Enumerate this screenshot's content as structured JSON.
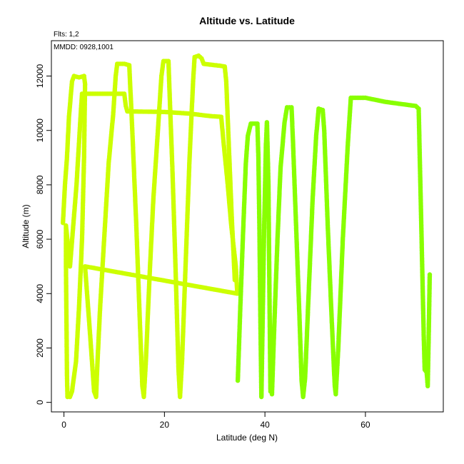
{
  "chart_data": {
    "type": "scatter",
    "title": "Altitude vs. Latitude",
    "xlabel": "Latitude (deg N)",
    "ylabel": "Altitude (m)",
    "xlim": [
      -2.5,
      75.5
    ],
    "ylim": [
      -350,
      13300
    ],
    "x_ticks": [
      0,
      20,
      40,
      60
    ],
    "y_ticks": [
      0,
      2000,
      4000,
      6000,
      8000,
      10000,
      12000
    ],
    "annotations": [
      "Flts: 1,2",
      "MMDD: 0928,1001"
    ],
    "grid": false,
    "series": [
      {
        "color": "#ccff00",
        "points": [
          [
            -0.2,
            6600
          ],
          [
            0.2,
            8000
          ],
          [
            0.6,
            9000
          ],
          [
            1.0,
            10500
          ],
          [
            1.6,
            11800
          ],
          [
            2.0,
            12000
          ],
          [
            3.0,
            11950
          ],
          [
            4.0,
            12000
          ],
          [
            4.2,
            11700
          ],
          [
            4.0,
            9000
          ],
          [
            3.6,
            6000
          ],
          [
            3.0,
            3500
          ],
          [
            2.4,
            1500
          ],
          [
            1.6,
            400
          ],
          [
            1.2,
            200
          ],
          [
            0.7,
            200
          ],
          [
            0.6,
            1000
          ],
          [
            0.5,
            3000
          ],
          [
            0.4,
            5000
          ],
          [
            0.4,
            6500
          ],
          [
            1.2,
            5000
          ],
          [
            2.5,
            8000
          ],
          [
            3.4,
            10800
          ],
          [
            3.6,
            11350
          ],
          [
            7,
            11350
          ],
          [
            9,
            11350
          ],
          [
            12,
            11350
          ],
          [
            12.3,
            10900
          ],
          [
            12.6,
            10700
          ],
          [
            20,
            10680
          ],
          [
            25,
            10620
          ],
          [
            29,
            10530
          ],
          [
            31.3,
            10500
          ],
          [
            31.8,
            9500
          ],
          [
            32.6,
            8000
          ],
          [
            33.3,
            6500
          ],
          [
            33.6,
            6000
          ],
          [
            34.2,
            5000
          ],
          [
            34.5,
            4000
          ],
          [
            4.2,
            5000
          ],
          [
            5.2,
            2500
          ],
          [
            6,
            400
          ],
          [
            6.4,
            200
          ],
          [
            6.6,
            1200
          ],
          [
            7.2,
            3500
          ],
          [
            8,
            6000
          ],
          [
            8.9,
            8800
          ],
          [
            9.8,
            10600
          ],
          [
            10.3,
            12000
          ],
          [
            10.6,
            12450
          ],
          [
            12,
            12450
          ],
          [
            13,
            12400
          ],
          [
            13.6,
            10000
          ],
          [
            14.4,
            6500
          ],
          [
            15.1,
            3000
          ],
          [
            15.6,
            600
          ],
          [
            15.9,
            200
          ],
          [
            16.3,
            1500
          ],
          [
            17,
            4500
          ],
          [
            17.8,
            7500
          ],
          [
            18.7,
            10000
          ],
          [
            19.4,
            12000
          ],
          [
            19.8,
            12550
          ],
          [
            20.8,
            12550
          ],
          [
            21,
            11500
          ],
          [
            21.6,
            8500
          ],
          [
            22.2,
            5000
          ],
          [
            22.8,
            1200
          ],
          [
            23.1,
            200
          ],
          [
            23.5,
            1500
          ],
          [
            24.2,
            5000
          ],
          [
            25,
            9000
          ],
          [
            25.7,
            11800
          ],
          [
            26,
            12700
          ],
          [
            26.8,
            12750
          ],
          [
            27.4,
            12650
          ],
          [
            27.8,
            12450
          ],
          [
            30,
            12400
          ],
          [
            31,
            12380
          ],
          [
            32,
            12350
          ],
          [
            32.3,
            11800
          ],
          [
            32.8,
            9500
          ],
          [
            33.4,
            6800
          ],
          [
            34,
            4500
          ]
        ]
      },
      {
        "color": "#88ff00",
        "points": [
          [
            34.6,
            800
          ],
          [
            35.1,
            3500
          ],
          [
            35.6,
            6000
          ],
          [
            36.2,
            8800
          ],
          [
            36.6,
            9800
          ],
          [
            37.2,
            10250
          ],
          [
            38.5,
            10250
          ],
          [
            38.7,
            9000
          ],
          [
            38.9,
            6500
          ],
          [
            39.1,
            3000
          ],
          [
            39.3,
            200
          ],
          [
            39.5,
            2500
          ],
          [
            39.8,
            6000
          ],
          [
            40.2,
            9500
          ],
          [
            40.4,
            10300
          ],
          [
            40.7,
            8000
          ],
          [
            40.9,
            4000
          ],
          [
            41.1,
            400
          ],
          [
            41.4,
            300
          ],
          [
            41.8,
            2500
          ],
          [
            42.5,
            6000
          ],
          [
            43.1,
            8600
          ],
          [
            43.9,
            10300
          ],
          [
            44.4,
            10850
          ],
          [
            45.3,
            10850
          ],
          [
            45.6,
            9500
          ],
          [
            46.2,
            6500
          ],
          [
            46.9,
            3000
          ],
          [
            47.3,
            800
          ],
          [
            47.6,
            200
          ],
          [
            48,
            900
          ],
          [
            48.7,
            4000
          ],
          [
            49.5,
            7500
          ],
          [
            50.2,
            9800
          ],
          [
            50.7,
            10800
          ],
          [
            51.5,
            10750
          ],
          [
            51.8,
            10000
          ],
          [
            52.5,
            6500
          ],
          [
            53.3,
            3000
          ],
          [
            53.9,
            600
          ],
          [
            54.1,
            300
          ],
          [
            54.6,
            2000
          ],
          [
            55.5,
            6000
          ],
          [
            56.5,
            9500
          ],
          [
            57.1,
            11200
          ],
          [
            60,
            11200
          ],
          [
            64,
            11050
          ],
          [
            68,
            10950
          ],
          [
            70,
            10900
          ],
          [
            70.6,
            10800
          ],
          [
            71,
            7500
          ],
          [
            71.3,
            5000
          ],
          [
            71.6,
            2500
          ],
          [
            71.8,
            1200
          ],
          [
            72.2,
            1100
          ],
          [
            72.4,
            600
          ],
          [
            72.6,
            2500
          ],
          [
            72.8,
            4700
          ]
        ]
      }
    ]
  }
}
